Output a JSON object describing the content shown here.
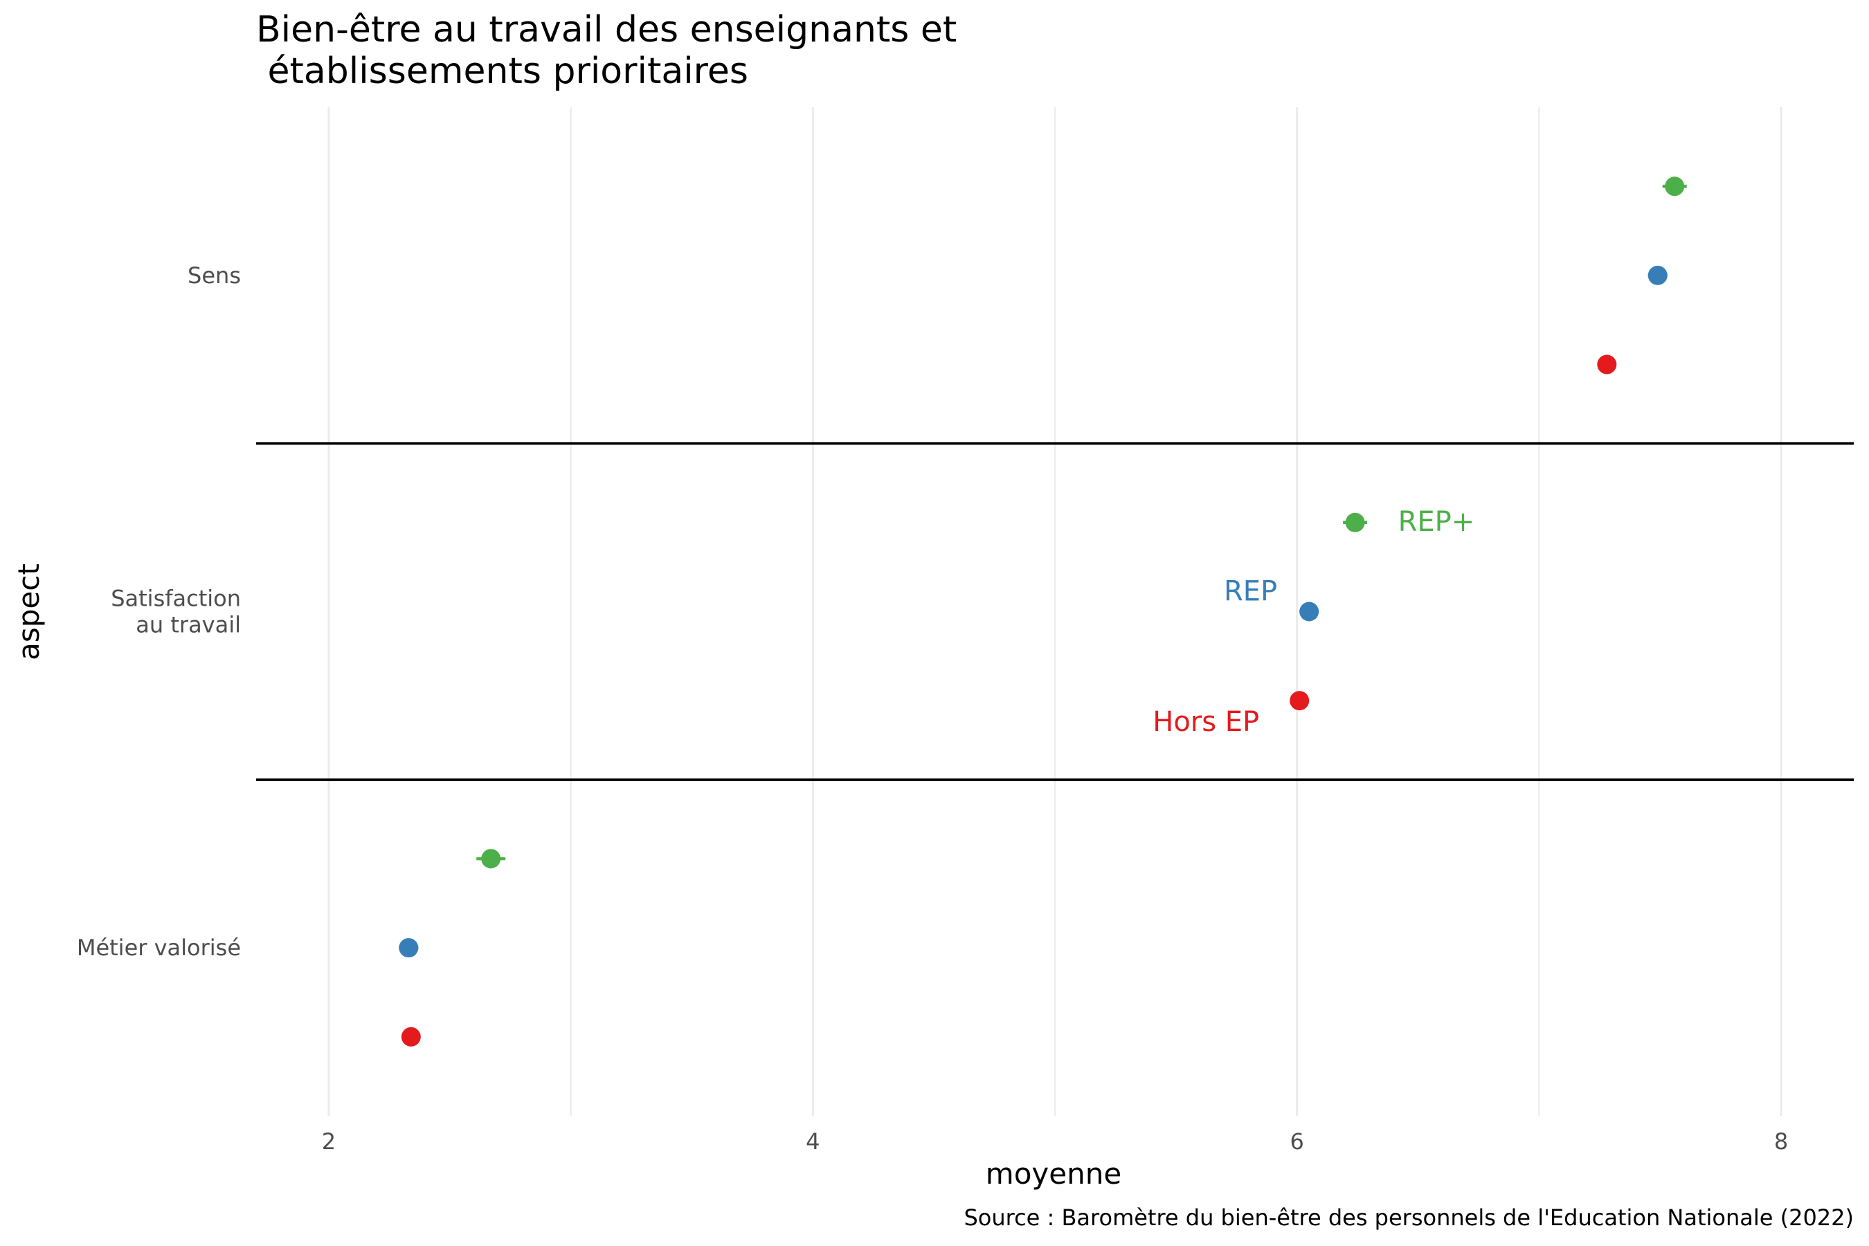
{
  "chart_data": {
    "type": "scatter",
    "title_line1": "Bien-être au travail des enseignants et",
    "title_line2": " établissements prioritaires",
    "xlabel": "moyenne",
    "ylabel": "aspect",
    "caption": "Source : Baromètre du bien-être des personnels de l'Education Nationale (2022)",
    "xlim": [
      1.7,
      8.3
    ],
    "x_ticks": [
      "2",
      "4",
      "6",
      "8"
    ],
    "grid": true,
    "categories": [
      {
        "label_lines": [
          "Sens"
        ]
      },
      {
        "label_lines": [
          "Satisfaction ",
          "au travail"
        ]
      },
      {
        "label_lines": [
          "Métier valorisé"
        ]
      }
    ],
    "series": [
      {
        "name": "REP+",
        "color": "#4daf4a",
        "values": [
          7.56,
          6.24,
          2.67
        ],
        "error": [
          0.05,
          0.05,
          0.06
        ]
      },
      {
        "name": "REP",
        "color": "#377eb8",
        "values": [
          7.49,
          6.05,
          2.33
        ],
        "error": [
          0.04,
          0.04,
          0.04
        ]
      },
      {
        "name": "Hors EP",
        "color": "#e41a1c",
        "values": [
          7.28,
          6.01,
          2.34
        ],
        "error": [
          0.01,
          0.01,
          0.01
        ]
      }
    ],
    "direct_labels": [
      {
        "series": "REP+",
        "category": 1,
        "text": "REP+"
      },
      {
        "series": "REP",
        "category": 1,
        "text": "REP"
      },
      {
        "series": "Hors EP",
        "category": 1,
        "text": "Hors EP"
      }
    ]
  }
}
